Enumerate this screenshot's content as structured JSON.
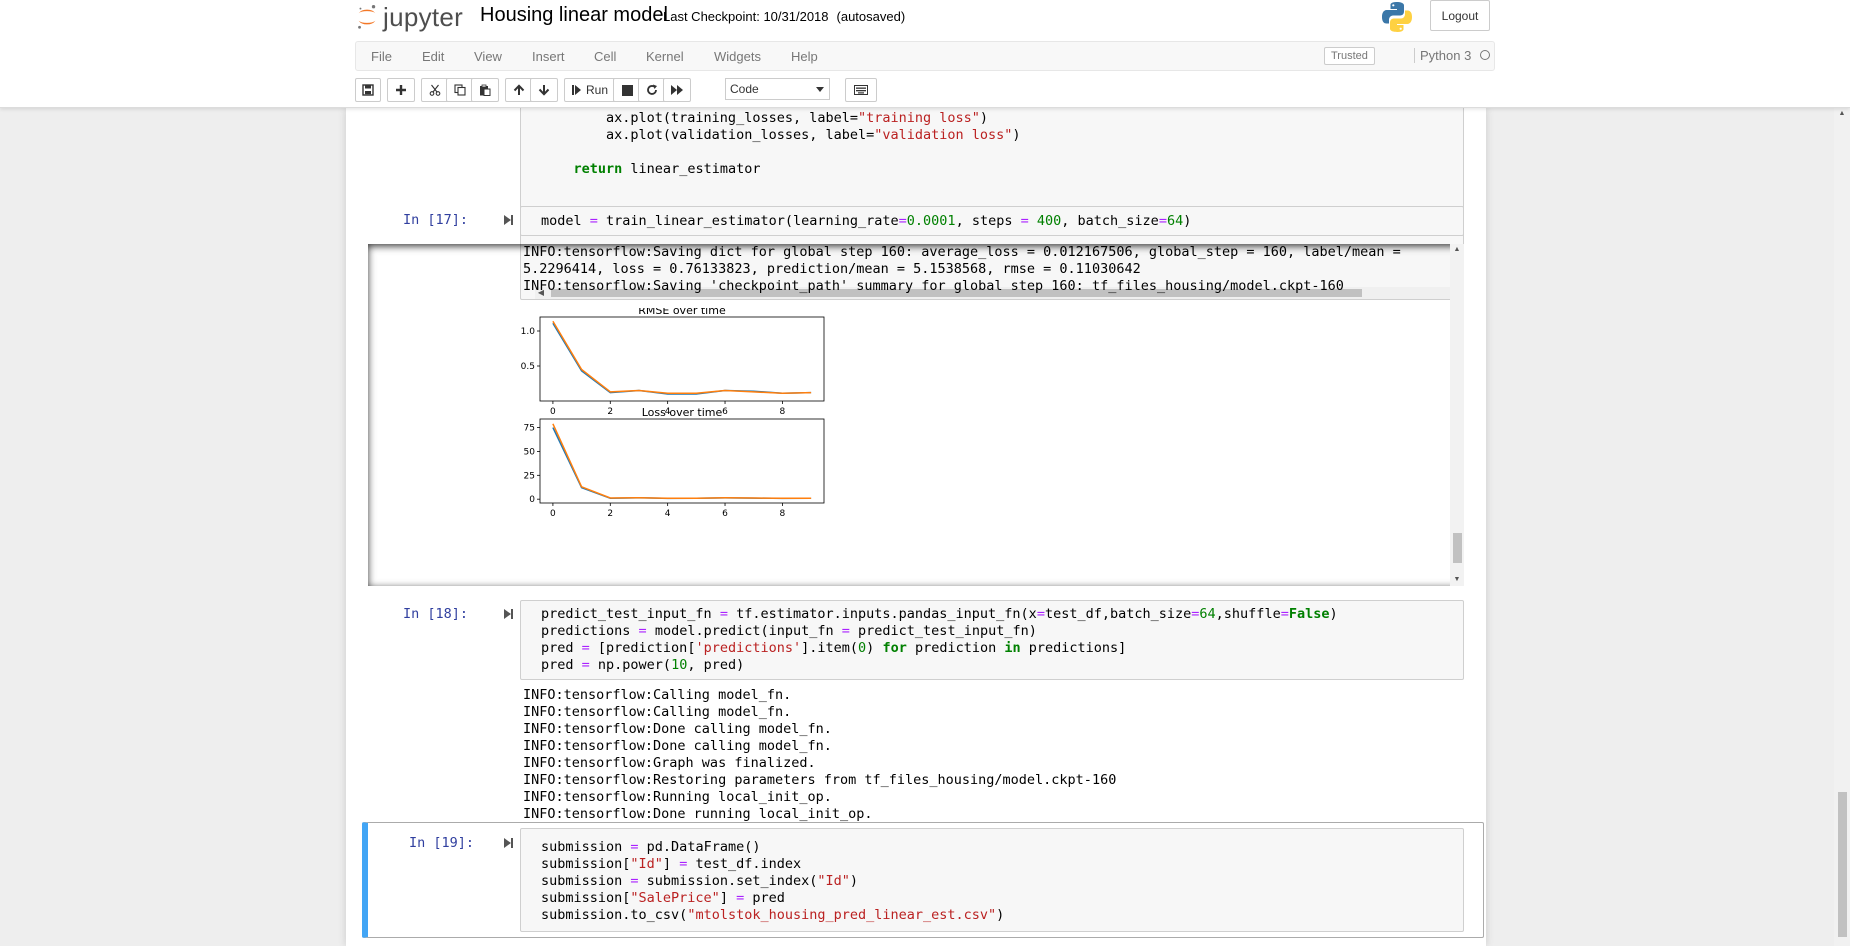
{
  "header": {
    "logo_text": "jupyter",
    "notebook_title": "Housing linear model",
    "checkpoint_label": "Last Checkpoint: 10/31/2018",
    "autosave_status": "(autosaved)",
    "logout_label": "Logout"
  },
  "menu": {
    "items": [
      "File",
      "Edit",
      "View",
      "Insert",
      "Cell",
      "Kernel",
      "Widgets",
      "Help"
    ],
    "trusted_label": "Trusted",
    "kernel_name": "Python 3"
  },
  "toolbar": {
    "run_label": "Run",
    "cell_type": "Code",
    "icons": [
      "save-icon",
      "plus-icon",
      "cut-icon",
      "copy-icon",
      "paste-icon",
      "arrow-up-icon",
      "arrow-down-icon",
      "run-icon",
      "stop-icon",
      "restart-icon",
      "fast-forward-icon",
      "keyboard-icon"
    ]
  },
  "cells": {
    "c16": {
      "code": [
        "        ax.plot(training_losses, label=\"training loss\")",
        "        ax.plot(validation_losses, label=\"validation loss\")",
        "",
        "    return linear_estimator"
      ]
    },
    "c17": {
      "prompt": "In [17]:",
      "code": "model = train_linear_estimator(learning_rate=0.0001, steps = 400, batch_size=64)",
      "output_lines": [
        "INFO:tensorflow:Saving dict for global step 160: average_loss = 0.012167506, global_step = 160, label/mean =",
        "5.2296414, loss = 0.76133823, prediction/mean = 5.1538568, rmse = 0.11030642",
        "INFO:tensorflow:Saving 'checkpoint_path' summary for global step 160: tf_files_housing/model.ckpt-160"
      ]
    },
    "c18": {
      "prompt": "In [18]:",
      "code": [
        "predict_test_input_fn = tf.estimator.inputs.pandas_input_fn(x=test_df,batch_size=64,shuffle=False)",
        "predictions = model.predict(input_fn = predict_test_input_fn)",
        "pred = [prediction['predictions'].item(0) for prediction in predictions]",
        "pred = np.power(10, pred)"
      ],
      "output_lines": [
        "INFO:tensorflow:Calling model_fn.",
        "INFO:tensorflow:Calling model_fn.",
        "INFO:tensorflow:Done calling model_fn.",
        "INFO:tensorflow:Done calling model_fn.",
        "INFO:tensorflow:Graph was finalized.",
        "INFO:tensorflow:Restoring parameters from tf_files_housing/model.ckpt-160",
        "INFO:tensorflow:Running local_init_op.",
        "INFO:tensorflow:Done running local_init_op."
      ]
    },
    "c19": {
      "prompt": "In [19]:",
      "code": [
        "submission = pd.DataFrame()",
        "submission[\"Id\"] = test_df.index",
        "submission = submission.set_index(\"Id\")",
        "submission[\"SalePrice\"] = pred",
        "submission.to_csv(\"mtolstok_housing_pred_linear_est.csv\")"
      ]
    }
  },
  "chart_data": [
    {
      "type": "line",
      "title": "RMSE over time",
      "x": [
        0,
        1,
        2,
        3,
        4,
        5,
        6,
        7,
        8,
        9
      ],
      "xticks": [
        "0",
        "2",
        "4",
        "6",
        "8"
      ],
      "yticks": [
        "0.5",
        "1.0"
      ],
      "xlim": [
        -0.45,
        9.45
      ],
      "ylim": [
        0.0,
        1.2
      ],
      "series": [
        {
          "values": [
            1.11,
            0.43,
            0.12,
            0.15,
            0.1,
            0.1,
            0.15,
            0.14,
            0.11,
            0.12
          ],
          "color": "#1f77b4"
        },
        {
          "values": [
            1.14,
            0.45,
            0.13,
            0.15,
            0.11,
            0.11,
            0.15,
            0.13,
            0.11,
            0.12
          ],
          "color": "#ff7f0e"
        }
      ]
    },
    {
      "type": "line",
      "title": "Loss over time",
      "x": [
        0,
        1,
        2,
        3,
        4,
        5,
        6,
        7,
        8,
        9
      ],
      "xticks": [
        "0",
        "2",
        "4",
        "6",
        "8"
      ],
      "yticks": [
        "0",
        "25",
        "50",
        "75"
      ],
      "xlim": [
        -0.45,
        9.45
      ],
      "ylim": [
        -4,
        84
      ],
      "series": [
        {
          "values": [
            75,
            12,
            1,
            1.5,
            0.8,
            0.9,
            1.3,
            1.1,
            0.8,
            0.9
          ],
          "color": "#1f77b4"
        },
        {
          "values": [
            79,
            13,
            1.2,
            1.6,
            0.9,
            1.0,
            1.5,
            1.2,
            0.9,
            1.0
          ],
          "color": "#ff7f0e"
        }
      ]
    }
  ]
}
